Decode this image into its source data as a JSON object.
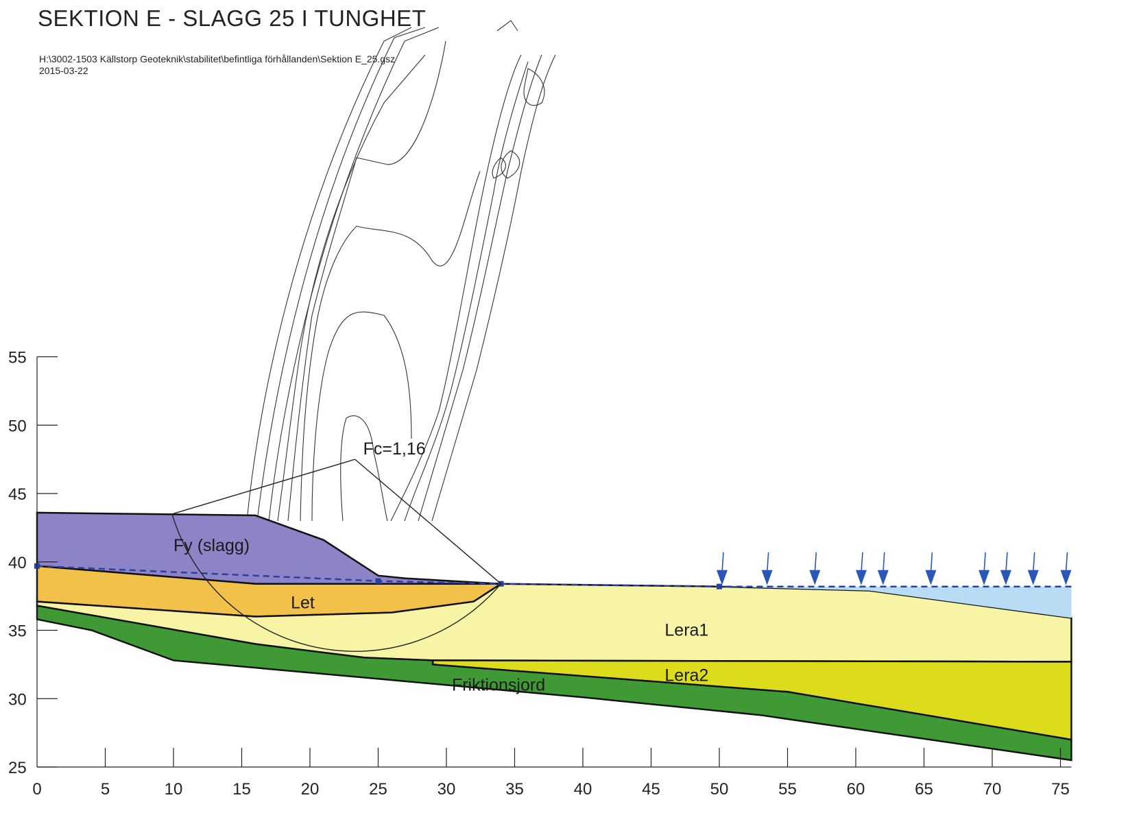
{
  "header": {
    "title": "SEKTION E - SLAGG 25 I TUNGHET",
    "file_path": "H:\\3002-1503 Källstorp Geoteknik\\stabilitet\\befintliga förhållanden\\Sektion E_25.gsz",
    "date": "2015-03-22"
  },
  "layers": {
    "fy": "Fy (slagg)",
    "let": "Let",
    "lera1": "Lera1",
    "lera2": "Lera2",
    "friktionsjord": "Friktionsjord"
  },
  "safety_factor": "Fc=1,16",
  "colors": {
    "fy": "#8c84c6",
    "let": "#f2c14a",
    "lera1": "#f8f4a6",
    "lera2": "#dcdc1c",
    "friktionsjord": "#3f9a35",
    "water": "#b9dcf5",
    "phreatic": "#2a3f9e",
    "load_arrow": "#2a56b8"
  },
  "chart_data": {
    "type": "cross-section",
    "x_ticks": [
      0,
      5,
      10,
      15,
      20,
      25,
      30,
      35,
      40,
      45,
      50,
      55,
      60,
      65,
      70,
      75
    ],
    "y_ticks": [
      25,
      30,
      35,
      40,
      45,
      50,
      55
    ],
    "xlim": [
      0,
      75.8
    ],
    "ylim": [
      25,
      55
    ],
    "fy_polygon": [
      [
        0,
        43.6
      ],
      [
        16,
        43.4
      ],
      [
        21,
        41.6
      ],
      [
        25,
        39.0
      ],
      [
        27,
        38.8
      ],
      [
        34,
        38.4
      ],
      [
        16,
        38.4
      ],
      [
        0,
        39.7
      ]
    ],
    "let_polygon": [
      [
        0,
        39.7
      ],
      [
        16,
        38.4
      ],
      [
        34,
        38.4
      ],
      [
        32,
        37.1
      ],
      [
        26,
        36.3
      ],
      [
        16,
        36.0
      ],
      [
        0,
        37.1
      ]
    ],
    "lera1_polygon": [
      [
        0,
        37.1
      ],
      [
        16,
        36.0
      ],
      [
        26,
        36.3
      ],
      [
        32,
        37.1
      ],
      [
        34,
        38.4
      ],
      [
        50,
        38.2
      ],
      [
        61,
        37.9
      ],
      [
        75.8,
        35.9
      ],
      [
        75.8,
        32.7
      ],
      [
        29,
        32.8
      ],
      [
        24,
        33.0
      ],
      [
        16,
        34.0
      ],
      [
        0,
        36.8
      ]
    ],
    "lera2_polygon": [
      [
        29,
        32.8
      ],
      [
        75.8,
        32.7
      ],
      [
        75.8,
        27.0
      ],
      [
        55,
        30.5
      ],
      [
        29,
        32.5
      ]
    ],
    "friktionsjord_polygon": [
      [
        0,
        36.8
      ],
      [
        16,
        34.0
      ],
      [
        24,
        33.0
      ],
      [
        29,
        32.8
      ],
      [
        29,
        32.5
      ],
      [
        55,
        30.5
      ],
      [
        75.8,
        27.0
      ],
      [
        75.8,
        25.5
      ],
      [
        53,
        28.8
      ],
      [
        40,
        30.1
      ],
      [
        10,
        32.8
      ],
      [
        4,
        35.0
      ],
      [
        0,
        35.8
      ]
    ],
    "water_polygon": [
      [
        61,
        37.9
      ],
      [
        75.8,
        35.9
      ],
      [
        75.8,
        38.2
      ],
      [
        50,
        38.2
      ]
    ],
    "phreatic_line": [
      [
        0,
        39.7
      ],
      [
        25,
        38.6
      ],
      [
        34,
        38.4
      ],
      [
        50,
        38.2
      ],
      [
        75.8,
        38.2
      ]
    ],
    "slip_center": [
      23.3,
      47.5
    ],
    "slip_circle": {
      "start": [
        9.9,
        43.5
      ],
      "end": [
        34.0,
        38.4
      ],
      "lowest": [
        23.3,
        33.5
      ]
    },
    "load_arrows_x": [
      50.2,
      53.5,
      57,
      60.4,
      62,
      65.5,
      69.4,
      71,
      73,
      75.4
    ]
  }
}
